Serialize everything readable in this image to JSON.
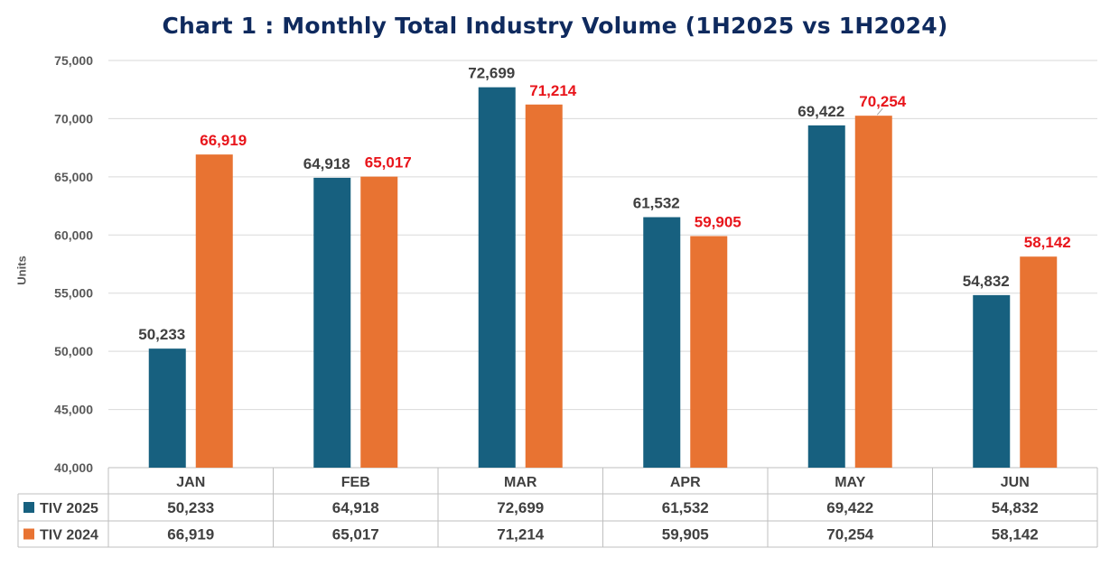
{
  "chart_data": {
    "type": "bar",
    "title": "Chart 1 : Monthly Total Industry Volume (1H2025 vs 1H2024)",
    "xlabel": "",
    "ylabel": "Units",
    "ylim": [
      40000,
      75000
    ],
    "yticks": [
      "40,000",
      "45,000",
      "50,000",
      "55,000",
      "60,000",
      "65,000",
      "70,000",
      "75,000"
    ],
    "grid": true,
    "categories": [
      "JAN",
      "FEB",
      "MAR",
      "APR",
      "MAY",
      "JUN"
    ],
    "series": [
      {
        "name": "TIV 2025",
        "color": "#17607f",
        "label_color": "#404040",
        "values": [
          50233,
          64918,
          72699,
          61532,
          69422,
          54832
        ],
        "labels": [
          "50,233",
          "64,918",
          "72,699",
          "61,532",
          "69,422",
          "54,832"
        ]
      },
      {
        "name": "TIV 2024",
        "color": "#e87332",
        "label_color": "#e8151b",
        "values": [
          66919,
          65017,
          71214,
          59905,
          70254,
          58142
        ],
        "labels": [
          "66,919",
          "65,017",
          "71,214",
          "59,905",
          "70,254",
          "58,142"
        ]
      }
    ],
    "data_table": true
  }
}
